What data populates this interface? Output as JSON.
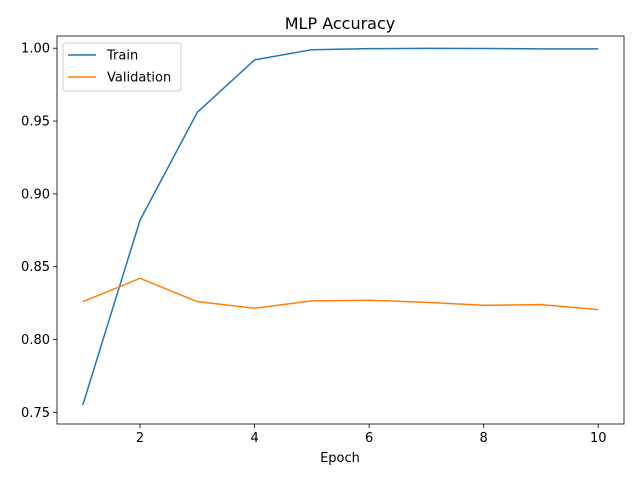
{
  "chart_data": {
    "type": "line",
    "title": "MLP Accuracy",
    "xlabel": "Epoch",
    "ylabel": "",
    "x": [
      1,
      2,
      3,
      4,
      5,
      6,
      7,
      8,
      9,
      10
    ],
    "xlim": [
      0.55,
      10.45
    ],
    "ylim": [
      0.742,
      1.0084
    ],
    "xticks": [
      2,
      4,
      6,
      8,
      10
    ],
    "yticks": [
      0.75,
      0.8,
      0.85,
      0.9,
      0.95,
      1.0
    ],
    "xtick_labels": [
      "2",
      "4",
      "6",
      "8",
      "10"
    ],
    "ytick_labels": [
      "0.75",
      "0.80",
      "0.85",
      "0.90",
      "0.95",
      "1.00"
    ],
    "grid": false,
    "legend_position": "upper-left",
    "series": [
      {
        "name": "Train",
        "color": "#1f77b4",
        "values": [
          0.755,
          0.882,
          0.956,
          0.992,
          0.999,
          0.9997,
          0.9999,
          0.9998,
          0.9996,
          0.9996
        ]
      },
      {
        "name": "Validation",
        "color": "#ff7f0e",
        "values": [
          0.826,
          0.842,
          0.826,
          0.8215,
          0.8265,
          0.827,
          0.8255,
          0.8235,
          0.824,
          0.8205
        ]
      }
    ]
  }
}
